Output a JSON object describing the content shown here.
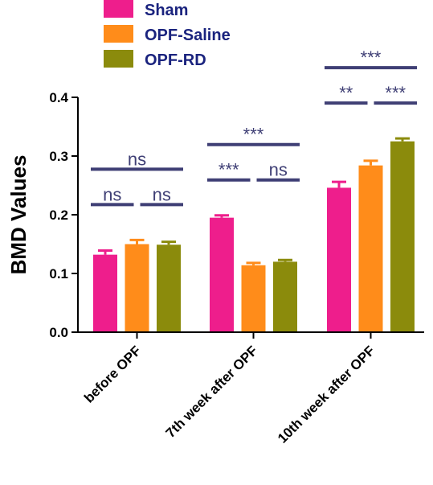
{
  "chart_data": {
    "type": "bar",
    "ylabel": "BMD Values",
    "xlabel": "",
    "ylim": [
      0,
      0.4
    ],
    "yticks": [
      "0.0",
      "0.1",
      "0.2",
      "0.3",
      "0.4"
    ],
    "ytick_values": [
      0,
      0.1,
      0.2,
      0.3,
      0.4
    ],
    "categories": [
      "before OPF",
      "7th week after OPF",
      "10th week after OPF"
    ],
    "legend_placement": "top-center",
    "series": [
      {
        "name": "Sham",
        "color": "#ee1e8c",
        "values": [
          0.132,
          0.195,
          0.246
        ],
        "errors": [
          0.007,
          0.004,
          0.01
        ]
      },
      {
        "name": "OPF-Saline",
        "color": "#ff8c1a",
        "values": [
          0.15,
          0.114,
          0.284
        ],
        "errors": [
          0.007,
          0.004,
          0.008
        ]
      },
      {
        "name": "OPF-RD",
        "color": "#8b8b0c",
        "values": [
          0.149,
          0.12,
          0.325
        ],
        "errors": [
          0.005,
          0.003,
          0.005
        ]
      }
    ],
    "significance": [
      {
        "category": 0,
        "from": 0,
        "to": 2,
        "label": "ns",
        "level": 2
      },
      {
        "category": 0,
        "from": 0,
        "to": 1,
        "label": "ns",
        "level": 1
      },
      {
        "category": 0,
        "from": 1,
        "to": 2,
        "label": "ns",
        "level": 1
      },
      {
        "category": 1,
        "from": 0,
        "to": 2,
        "label": "***",
        "level": 2
      },
      {
        "category": 1,
        "from": 0,
        "to": 1,
        "label": "***",
        "level": 1
      },
      {
        "category": 1,
        "from": 1,
        "to": 2,
        "label": "ns",
        "level": 1
      },
      {
        "category": 2,
        "from": 0,
        "to": 2,
        "label": "***",
        "level": 2
      },
      {
        "category": 2,
        "from": 0,
        "to": 1,
        "label": "**",
        "level": 1
      },
      {
        "category": 2,
        "from": 1,
        "to": 2,
        "label": "***",
        "level": 1
      }
    ],
    "colors": {
      "legend_text": "#1a237e",
      "significance": "#3f3f75",
      "axis": "#000000"
    }
  }
}
